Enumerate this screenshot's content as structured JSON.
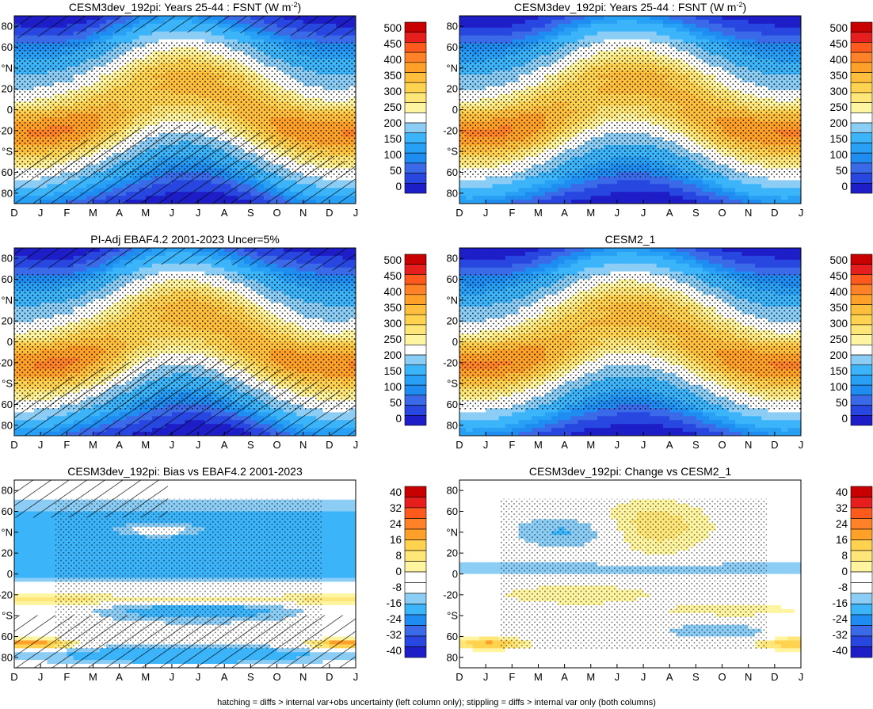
{
  "footer": "hatching = diffs > internal var+obs uncertainty (left column only); stippling = diffs > internal var only (both columns)",
  "x_ticks": [
    "D",
    "J",
    "F",
    "M",
    "A",
    "M",
    "J",
    "J",
    "A",
    "S",
    "O",
    "N",
    "D",
    "J"
  ],
  "y_ticks": [
    "80",
    "60",
    "°N",
    "20",
    "0",
    "-20",
    "°S",
    "60",
    "80"
  ],
  "colors": {
    "abs": [
      "#1e1ec8",
      "#2846e0",
      "#3a6ae8",
      "#1e8cf0",
      "#28a0f5",
      "#3cb4fa",
      "#8ccdf5",
      "#ffffff",
      "#fff5a0",
      "#ffe678",
      "#ffd250",
      "#ffbe3c",
      "#ffa028",
      "#ff8228",
      "#ff5a1e",
      "#e61e1e",
      "#c80000"
    ],
    "diff": [
      "#1e1ec8",
      "#2846e0",
      "#3a6ae8",
      "#1e8cf0",
      "#3cb4fa",
      "#8ccdf5",
      "#ffffff",
      "#ffffff",
      "#fff5a0",
      "#ffe678",
      "#ffd250",
      "#ffa028",
      "#ff8228",
      "#ff5a1e",
      "#e61e1e",
      "#c80000"
    ]
  },
  "chart_data": [
    {
      "type": "heatmap",
      "title": "CESM3dev_192pi: Years 25-44 : FSNT (W m",
      "title_sup": "-2",
      "title_end": ")",
      "months": [
        "D",
        "J",
        "F",
        "M",
        "A",
        "M",
        "J",
        "J",
        "A",
        "S",
        "O",
        "N",
        "D",
        "J"
      ],
      "ylim": [
        -90,
        90
      ],
      "colorbar": [
        "500",
        "450",
        "400",
        "350",
        "300",
        "250",
        "200",
        "150",
        "100",
        "50",
        "0"
      ],
      "hatching": true,
      "stippling": true,
      "field": "absolute"
    },
    {
      "type": "heatmap",
      "title": "CESM3dev_192pi: Years 25-44 : FSNT (W m",
      "title_sup": "-2",
      "title_end": ")",
      "months": [
        "D",
        "J",
        "F",
        "M",
        "A",
        "M",
        "J",
        "J",
        "A",
        "S",
        "O",
        "N",
        "D",
        "J"
      ],
      "ylim": [
        -90,
        90
      ],
      "colorbar": [
        "500",
        "450",
        "400",
        "350",
        "300",
        "250",
        "200",
        "150",
        "100",
        "50",
        "0"
      ],
      "hatching": false,
      "stippling": true,
      "field": "absolute"
    },
    {
      "type": "heatmap",
      "title": "PI-Adj EBAF4.2 2001-2023 Uncer=5%",
      "title_sup": "",
      "title_end": "",
      "months": [
        "D",
        "J",
        "F",
        "M",
        "A",
        "M",
        "J",
        "J",
        "A",
        "S",
        "O",
        "N",
        "D",
        "J"
      ],
      "ylim": [
        -90,
        90
      ],
      "colorbar": [
        "500",
        "450",
        "400",
        "350",
        "300",
        "250",
        "200",
        "150",
        "100",
        "50",
        "0"
      ],
      "hatching": true,
      "stippling": true,
      "field": "absolute"
    },
    {
      "type": "heatmap",
      "title": "CESM2_1",
      "title_sup": "",
      "title_end": "",
      "months": [
        "D",
        "J",
        "F",
        "M",
        "A",
        "M",
        "J",
        "J",
        "A",
        "S",
        "O",
        "N",
        "D",
        "J"
      ],
      "ylim": [
        -90,
        90
      ],
      "colorbar": [
        "500",
        "450",
        "400",
        "350",
        "300",
        "250",
        "200",
        "150",
        "100",
        "50",
        "0"
      ],
      "hatching": false,
      "stippling": true,
      "field": "absolute"
    },
    {
      "type": "heatmap",
      "title": "CESM3dev_192pi: Bias vs EBAF4.2 2001-2023",
      "title_sup": "",
      "title_end": "",
      "months": [
        "D",
        "J",
        "F",
        "M",
        "A",
        "M",
        "J",
        "J",
        "A",
        "S",
        "O",
        "N",
        "D",
        "J"
      ],
      "ylim": [
        -90,
        90
      ],
      "colorbar": [
        "40",
        "32",
        "24",
        "16",
        "8",
        "0",
        "-8",
        "-16",
        "-24",
        "-32",
        "-40"
      ],
      "hatching": true,
      "stippling": true,
      "field": "bias"
    },
    {
      "type": "heatmap",
      "title": "CESM3dev_192pi: Change vs CESM2_1",
      "title_sup": "",
      "title_end": "",
      "months": [
        "D",
        "J",
        "F",
        "M",
        "A",
        "M",
        "J",
        "J",
        "A",
        "S",
        "O",
        "N",
        "D",
        "J"
      ],
      "ylim": [
        -90,
        90
      ],
      "colorbar": [
        "40",
        "32",
        "24",
        "16",
        "8",
        "0",
        "-8",
        "-16",
        "-24",
        "-32",
        "-40"
      ],
      "hatching": false,
      "stippling": true,
      "field": "change"
    }
  ]
}
